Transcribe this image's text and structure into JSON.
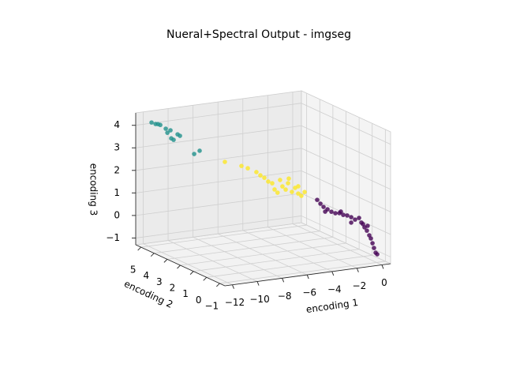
{
  "chart_data": {
    "type": "scatter3d",
    "title": "Nueral+Spectral Output - imgseg",
    "xlabel": "encoding 1",
    "ylabel": "encoding 2",
    "zlabel": "encoding 3",
    "xlim": [
      -12.6,
      0.7
    ],
    "ylim": [
      -1.4,
      5.4
    ],
    "zlim": [
      -1.3,
      4.55
    ],
    "xticks": [
      {
        "value": -12,
        "label": "−12"
      },
      {
        "value": -10,
        "label": "−10"
      },
      {
        "value": -8,
        "label": "−8"
      },
      {
        "value": -6,
        "label": "−6"
      },
      {
        "value": -4,
        "label": "−4"
      },
      {
        "value": -2,
        "label": "−2"
      },
      0
    ],
    "yticks": [
      {
        "value": -1,
        "label": "−1"
      },
      0,
      1,
      2,
      3,
      4,
      5
    ],
    "zticks": [
      {
        "value": -1,
        "label": "−1"
      },
      0,
      1,
      2,
      3,
      4
    ],
    "grid": true,
    "series": [
      {
        "color": "#21918c",
        "x": [
          -11.75,
          -11.43,
          -11.05,
          -10.61,
          -10.23,
          -10.48,
          -9.66,
          -9.47,
          -10.17,
          -9.98,
          -7.89,
          -8.33,
          -11.24
        ],
        "y": [
          5,
          5,
          5,
          5,
          5,
          5,
          5,
          5,
          5,
          5,
          5,
          5,
          5
        ],
        "z": [
          4.17,
          4.08,
          4.01,
          3.81,
          3.71,
          3.62,
          3.49,
          3.41,
          3.35,
          3.27,
          2.63,
          2.52,
          4.06
        ]
      },
      {
        "color": "#fde725",
        "x": [
          -7.97,
          -6.64,
          -6.13,
          -5.44,
          -5.12,
          -4.8,
          -4.17,
          -3.98,
          -3.54,
          -3.35,
          -3.09,
          -2.9,
          -2.59,
          -2.33,
          -2.08,
          -1.83,
          -1.57,
          -3.74,
          -2.84,
          -4.49,
          -2.08
        ],
        "y": [
          3,
          3,
          3,
          3,
          3,
          3,
          3,
          3,
          3,
          3,
          3,
          3,
          3,
          3,
          3,
          3,
          3,
          3,
          3,
          3,
          3
        ],
        "z": [
          2.68,
          2.4,
          2.26,
          2.04,
          1.87,
          1.74,
          1.45,
          1.16,
          1.55,
          1.25,
          1.09,
          1.36,
          0.95,
          1.11,
          0.84,
          0.72,
          0.87,
          1.0,
          1.56,
          1.55,
          1.16
        ]
      },
      {
        "color": "#440154",
        "x": [
          -4.56,
          -4.3,
          -4.05,
          -3.73,
          -3.42,
          -3.1,
          -2.78,
          -2.47,
          -2.15,
          -1.83,
          -1.52,
          -1.2,
          -1.01,
          -0.76,
          -0.57,
          -0.38,
          -0.25,
          -0.12,
          0.0,
          0.13,
          0.26,
          -1.83,
          -2.66,
          -0.88,
          -0.51,
          -3.92
        ],
        "y": [
          -0.8,
          -0.8,
          -0.8,
          -0.8,
          -0.8,
          -0.8,
          -0.8,
          -0.8,
          -0.8,
          -0.8,
          -0.8,
          -0.8,
          -0.8,
          -0.8,
          -0.8,
          -0.8,
          -0.8,
          -0.8,
          -0.8,
          -0.8,
          -0.8,
          -0.8,
          -0.8,
          -0.8,
          -0.8,
          -0.8
        ],
        "z": [
          1.76,
          1.57,
          1.41,
          1.28,
          1.15,
          1.06,
          1.04,
          0.94,
          0.89,
          0.79,
          0.66,
          0.71,
          0.49,
          0.26,
          0.1,
          -0.12,
          -0.27,
          -0.49,
          -0.71,
          -0.93,
          -1.01,
          0.55,
          1.1,
          0.41,
          0.31,
          1.19
        ]
      }
    ]
  }
}
